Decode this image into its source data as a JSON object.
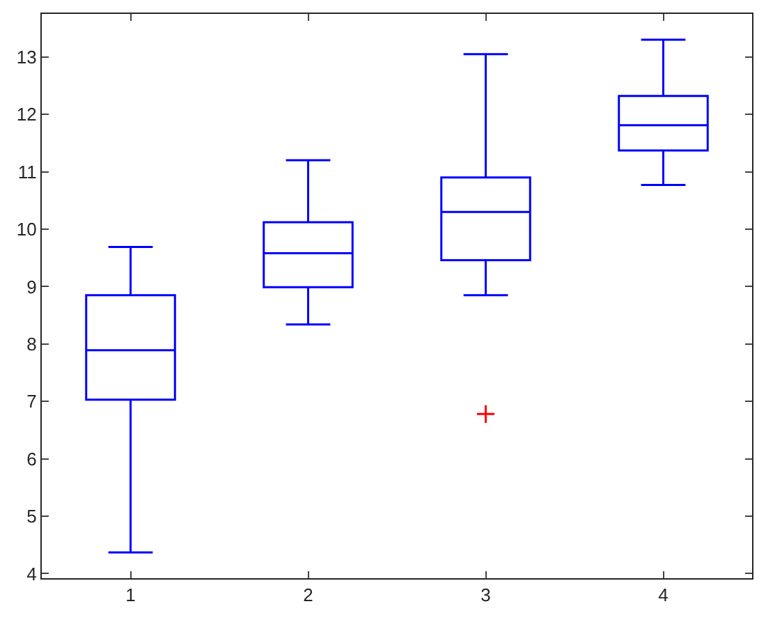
{
  "chart_data": {
    "type": "box",
    "categories": [
      "1",
      "2",
      "3",
      "4"
    ],
    "boxes": [
      {
        "low": 4.37,
        "q1": 7.03,
        "median": 7.89,
        "q3": 8.85,
        "high": 9.69
      },
      {
        "low": 8.34,
        "q1": 8.99,
        "median": 9.58,
        "q3": 10.12,
        "high": 11.2
      },
      {
        "low": 8.85,
        "q1": 9.46,
        "median": 10.3,
        "q3": 10.9,
        "high": 13.05
      },
      {
        "low": 10.77,
        "q1": 11.37,
        "median": 11.81,
        "q3": 12.32,
        "high": 13.3
      }
    ],
    "color": "#0000ff",
    "series": [
      {
        "type": "scatter",
        "x": [
          "3"
        ],
        "values": [
          6.78
        ],
        "color": "#ff0000"
      }
    ],
    "marker": "cross",
    "ylim": [
      3.92,
      13.75
    ],
    "yticks": [
      4,
      5,
      6,
      7,
      8,
      9,
      10,
      11,
      12,
      13
    ],
    "grid": false
  }
}
